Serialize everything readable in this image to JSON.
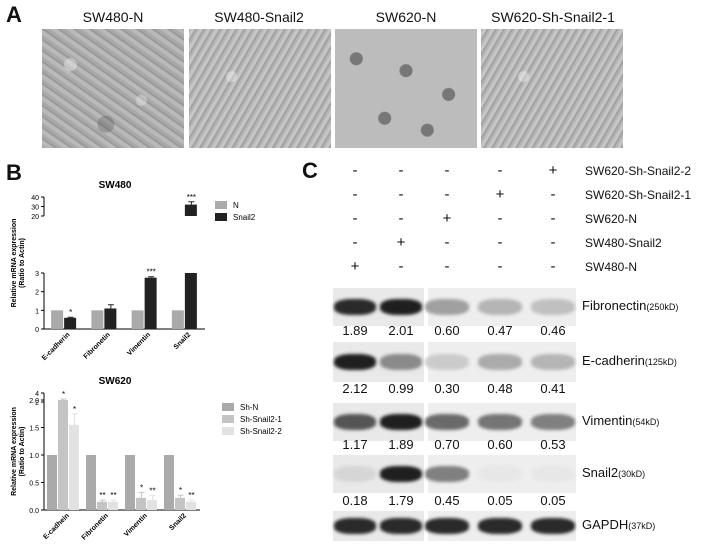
{
  "panel_a": {
    "letter": "A",
    "images": [
      {
        "label": "SW480-N"
      },
      {
        "label": "SW480-Snail2"
      },
      {
        "label": "SW620-N"
      },
      {
        "label": "SW620-Sh-Snail2-1"
      }
    ]
  },
  "panel_b": {
    "letter": "B",
    "sw480": {
      "title": "SW480",
      "ylabel_line1": "Relative mRNA expression",
      "ylabel_line2": "(Ratio to Actin)",
      "yticks_low": [
        "0",
        "1",
        "2",
        "3"
      ],
      "yticks_high": [
        "20",
        "30",
        "40"
      ],
      "legend": [
        {
          "name": "N",
          "color": "#aaaaaa"
        },
        {
          "name": "Snail2",
          "color": "#222222"
        }
      ]
    },
    "sw620": {
      "title": "SW620",
      "ylabel_line1": "Relative mRNA expression",
      "ylabel_line2": "(Ratio to Actin)",
      "yticks_low": [
        "0.0",
        "0.5",
        "1.0",
        "1.5",
        "2.0"
      ],
      "yticks_high": [
        "2",
        "4"
      ],
      "legend": [
        {
          "name": "Sh-N",
          "color": "#aaaaaa"
        },
        {
          "name": "Sh-Snail2-1",
          "color": "#c4c4c4"
        },
        {
          "name": "Sh-Snail2-2",
          "color": "#e2e2e2"
        }
      ]
    }
  },
  "chart_data": [
    {
      "type": "bar",
      "title": "SW480",
      "ylabel": "Relative mRNA expression (Ratio to Actin)",
      "categories": [
        "E-cadherin",
        "Fibronetin",
        "Vimentin",
        "Snail2"
      ],
      "series": [
        {
          "name": "N",
          "values": [
            1,
            1,
            1,
            1
          ]
        },
        {
          "name": "Snail2",
          "values": [
            0.6,
            1.1,
            2.75,
            32
          ]
        }
      ],
      "errors": [
        [
          0,
          0,
          0,
          0
        ],
        [
          0.03,
          0.2,
          0.05,
          3
        ]
      ],
      "significance": [
        [
          "",
          "",
          "",
          ""
        ],
        [
          "*",
          "",
          "***",
          "***"
        ]
      ],
      "y_break": [
        3,
        20
      ],
      "ylim": [
        0,
        40
      ],
      "legend": "right"
    },
    {
      "type": "bar",
      "title": "SW620",
      "ylabel": "Relative mRNA expression (Ratio to Actin)",
      "categories": [
        "E-cadhein",
        "Fibronetin",
        "Vimentin",
        "Snail2"
      ],
      "series": [
        {
          "name": "Sh-N",
          "values": [
            1,
            1,
            1,
            1
          ]
        },
        {
          "name": "Sh-Snail2-1",
          "values": [
            2.5,
            0.15,
            0.22,
            0.22
          ]
        },
        {
          "name": "Sh-Snail2-2",
          "values": [
            1.55,
            0.15,
            0.18,
            0.15
          ]
        }
      ],
      "errors": [
        [
          0,
          0,
          0,
          0
        ],
        [
          0.3,
          0.03,
          0.1,
          0.05
        ],
        [
          0.2,
          0.03,
          0.08,
          0.03
        ]
      ],
      "significance": [
        [
          "",
          "",
          "",
          ""
        ],
        [
          "*",
          "**",
          "*",
          "*"
        ],
        [
          "*",
          "**",
          "**",
          "**"
        ]
      ],
      "y_break": [
        2,
        2.2
      ],
      "ylim": [
        0,
        4
      ],
      "legend": "right"
    }
  ],
  "panel_c": {
    "letter": "C",
    "conditions": [
      {
        "label": "SW620-Sh-Snail2-2",
        "signs": [
          "-",
          "-",
          "-",
          "-",
          "+"
        ]
      },
      {
        "label": "SW620-Sh-Snail2-1",
        "signs": [
          "-",
          "-",
          "-",
          "+",
          "-"
        ]
      },
      {
        "label": "SW620-N",
        "signs": [
          "-",
          "-",
          "+",
          "-",
          "-"
        ]
      },
      {
        "label": "SW480-Snail2",
        "signs": [
          "-",
          "+",
          "-",
          "-",
          "-"
        ]
      },
      {
        "label": "SW480-N",
        "signs": [
          "+",
          "-",
          "-",
          "-",
          "-"
        ]
      }
    ],
    "blots": [
      {
        "name": "Fibronectin",
        "size": "(250kD)",
        "values": [
          "1.89",
          "2.01",
          "0.60",
          "0.47",
          "0.46"
        ]
      },
      {
        "name": "E-cadherin",
        "size": "(125kD)",
        "values": [
          "2.12",
          "0.99",
          "0.30",
          "0.48",
          "0.41"
        ]
      },
      {
        "name": "Vimentin",
        "size": "(54kD)",
        "values": [
          "1.17",
          "1.89",
          "0.70",
          "0.60",
          "0.53"
        ]
      },
      {
        "name": "Snail2",
        "size": "(30kD)",
        "values": [
          "0.18",
          "1.79",
          "0.45",
          "0.05",
          "0.05"
        ]
      },
      {
        "name": "GAPDH",
        "size": "(37kD)",
        "values": []
      }
    ],
    "intensities": [
      [
        0.9,
        0.95,
        0.35,
        0.25,
        0.2
      ],
      [
        0.95,
        0.45,
        0.15,
        0.3,
        0.25
      ],
      [
        0.7,
        0.95,
        0.6,
        0.55,
        0.5
      ],
      [
        0.1,
        0.95,
        0.5,
        0.02,
        0.02
      ],
      [
        0.9,
        0.9,
        0.9,
        0.9,
        0.9
      ]
    ]
  }
}
